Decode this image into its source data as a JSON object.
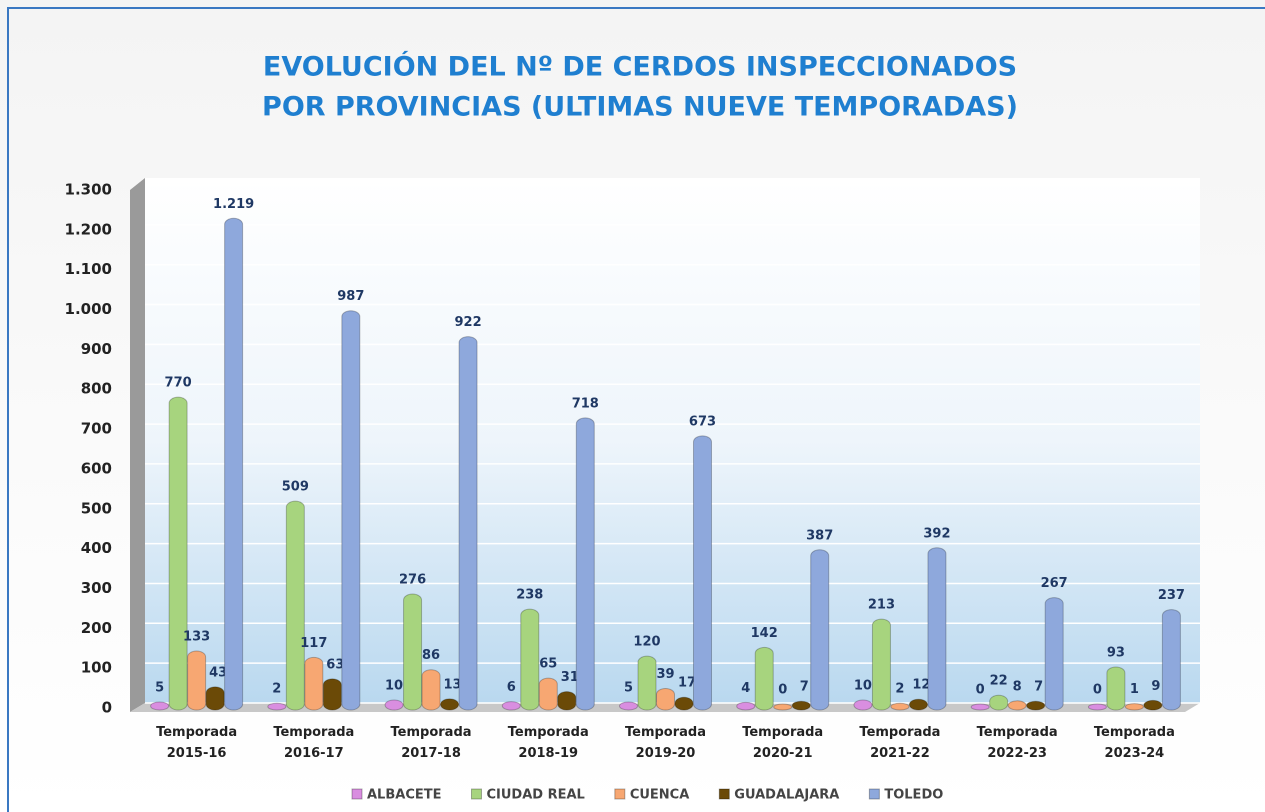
{
  "chart_data": {
    "type": "bar",
    "title_lines": [
      "EVOLUCIÓN DEL Nº DE CERDOS INSPECCIONADOS",
      "POR PROVINCIAS (ULTIMAS NUEVE TEMPORADAS)"
    ],
    "categories": [
      "Temporada 2015-16",
      "Temporada 2016-17",
      "Temporada 2017-18",
      "Temporada 2018-19",
      "Temporada 2019-20",
      "Temporada 2020-21",
      "Temporada 2021-22",
      "Temporada 2022-23",
      "Temporada 2023-24"
    ],
    "series": [
      {
        "name": "ALBACETE",
        "color": "#d98ee0",
        "values": [
          5,
          2,
          10,
          6,
          5,
          4,
          10,
          0,
          0
        ]
      },
      {
        "name": "CIUDAD REAL",
        "color": "#a7d47e",
        "values": [
          770,
          509,
          276,
          238,
          120,
          142,
          213,
          22,
          93
        ]
      },
      {
        "name": "CUENCA",
        "color": "#f7a772",
        "values": [
          133,
          117,
          86,
          65,
          39,
          0,
          2,
          8,
          1
        ]
      },
      {
        "name": "GUADALAJARA",
        "color": "#6b4a07",
        "values": [
          43,
          63,
          13,
          31,
          17,
          7,
          12,
          7,
          9
        ]
      },
      {
        "name": "TOLEDO",
        "color": "#8ea8dc",
        "values": [
          1219,
          987,
          922,
          718,
          673,
          387,
          392,
          267,
          237
        ],
        "value_labels": [
          "1.219",
          "987",
          "922",
          "718",
          "673",
          "387",
          "392",
          "267",
          "237"
        ]
      }
    ],
    "ylim": [
      0,
      1300
    ],
    "yticks": [
      0,
      100,
      200,
      300,
      400,
      500,
      600,
      700,
      800,
      900,
      {
        "value": 1000,
        "label": "1.000"
      },
      {
        "value": 1100,
        "label": "1.100"
      },
      {
        "value": 1200,
        "label": "1.200"
      },
      {
        "value": 1300,
        "label": "1.300"
      }
    ],
    "grid": true
  }
}
